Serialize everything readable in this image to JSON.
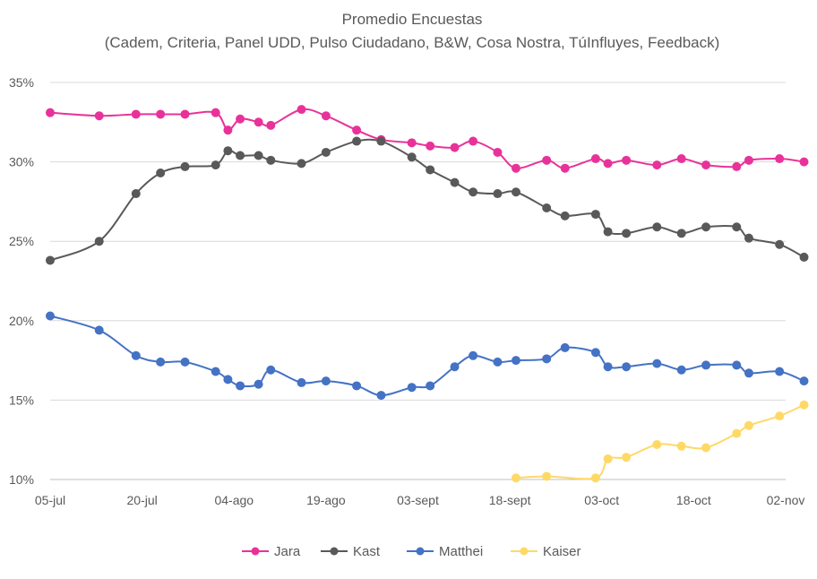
{
  "chart_data": {
    "type": "line",
    "title": "Promedio Encuestas",
    "subtitle": "(Cadem, Criteria, Panel UDD, Pulso Ciudadano, B&W, Cosa Nostra, TúInfluyes, Feedback)",
    "xlabel": "",
    "ylabel": "",
    "x_axis": {
      "type": "date",
      "start": "2025-07-05",
      "end": "2025-11-02",
      "ticks": [
        {
          "date": "2025-07-05",
          "label": "05-jul"
        },
        {
          "date": "2025-07-20",
          "label": "20-jul"
        },
        {
          "date": "2025-08-04",
          "label": "04-ago"
        },
        {
          "date": "2025-08-19",
          "label": "19-ago"
        },
        {
          "date": "2025-09-03",
          "label": "03-sept"
        },
        {
          "date": "2025-09-18",
          "label": "18-sept"
        },
        {
          "date": "2025-10-03",
          "label": "03-oct"
        },
        {
          "date": "2025-10-18",
          "label": "18-oct"
        },
        {
          "date": "2025-11-02",
          "label": "02-nov"
        }
      ]
    },
    "y_axis": {
      "min": 10,
      "max": 35,
      "ticks": [
        {
          "value": 10,
          "label": "10%"
        },
        {
          "value": 15,
          "label": "15%"
        },
        {
          "value": 20,
          "label": "20%"
        },
        {
          "value": 25,
          "label": "25%"
        },
        {
          "value": 30,
          "label": "30%"
        },
        {
          "value": 35,
          "label": "35%"
        }
      ]
    },
    "grid": "horizontal",
    "legend_position": "bottom",
    "series": [
      {
        "name": "Jara",
        "color": "#E8329A",
        "points": [
          [
            "2025-07-05",
            33.1
          ],
          [
            "2025-07-13",
            32.9
          ],
          [
            "2025-07-19",
            33.0
          ],
          [
            "2025-07-23",
            33.0
          ],
          [
            "2025-07-27",
            33.0
          ],
          [
            "2025-08-01",
            33.1
          ],
          [
            "2025-08-03",
            32.0
          ],
          [
            "2025-08-05",
            32.7
          ],
          [
            "2025-08-08",
            32.5
          ],
          [
            "2025-08-10",
            32.3
          ],
          [
            "2025-08-15",
            33.3
          ],
          [
            "2025-08-19",
            32.9
          ],
          [
            "2025-08-24",
            32.0
          ],
          [
            "2025-08-28",
            31.4
          ],
          [
            "2025-09-02",
            31.2
          ],
          [
            "2025-09-05",
            31.0
          ],
          [
            "2025-09-09",
            30.9
          ],
          [
            "2025-09-12",
            31.3
          ],
          [
            "2025-09-16",
            30.6
          ],
          [
            "2025-09-19",
            29.6
          ],
          [
            "2025-09-24",
            30.1
          ],
          [
            "2025-09-27",
            29.6
          ],
          [
            "2025-10-02",
            30.2
          ],
          [
            "2025-10-04",
            29.9
          ],
          [
            "2025-10-07",
            30.1
          ],
          [
            "2025-10-12",
            29.8
          ],
          [
            "2025-10-16",
            30.2
          ],
          [
            "2025-10-20",
            29.8
          ],
          [
            "2025-10-25",
            29.7
          ],
          [
            "2025-10-27",
            30.1
          ],
          [
            "2025-11-01",
            30.2
          ],
          [
            "2025-11-05",
            30.0
          ]
        ]
      },
      {
        "name": "Kast",
        "color": "#595959",
        "points": [
          [
            "2025-07-05",
            23.8
          ],
          [
            "2025-07-13",
            25.0
          ],
          [
            "2025-07-19",
            28.0
          ],
          [
            "2025-07-23",
            29.3
          ],
          [
            "2025-07-27",
            29.7
          ],
          [
            "2025-08-01",
            29.8
          ],
          [
            "2025-08-03",
            30.7
          ],
          [
            "2025-08-05",
            30.4
          ],
          [
            "2025-08-08",
            30.4
          ],
          [
            "2025-08-10",
            30.1
          ],
          [
            "2025-08-15",
            29.9
          ],
          [
            "2025-08-19",
            30.6
          ],
          [
            "2025-08-24",
            31.3
          ],
          [
            "2025-08-28",
            31.3
          ],
          [
            "2025-09-02",
            30.3
          ],
          [
            "2025-09-05",
            29.5
          ],
          [
            "2025-09-09",
            28.7
          ],
          [
            "2025-09-12",
            28.1
          ],
          [
            "2025-09-16",
            28.0
          ],
          [
            "2025-09-19",
            28.1
          ],
          [
            "2025-09-24",
            27.1
          ],
          [
            "2025-09-27",
            26.6
          ],
          [
            "2025-10-02",
            26.7
          ],
          [
            "2025-10-04",
            25.6
          ],
          [
            "2025-10-07",
            25.5
          ],
          [
            "2025-10-12",
            25.9
          ],
          [
            "2025-10-16",
            25.5
          ],
          [
            "2025-10-20",
            25.9
          ],
          [
            "2025-10-25",
            25.9
          ],
          [
            "2025-10-27",
            25.2
          ],
          [
            "2025-11-01",
            24.8
          ],
          [
            "2025-11-05",
            24.0
          ]
        ]
      },
      {
        "name": "Matthei",
        "color": "#4472C4",
        "points": [
          [
            "2025-07-05",
            20.3
          ],
          [
            "2025-07-13",
            19.4
          ],
          [
            "2025-07-19",
            17.8
          ],
          [
            "2025-07-23",
            17.4
          ],
          [
            "2025-07-27",
            17.4
          ],
          [
            "2025-08-01",
            16.8
          ],
          [
            "2025-08-03",
            16.3
          ],
          [
            "2025-08-05",
            15.9
          ],
          [
            "2025-08-08",
            16.0
          ],
          [
            "2025-08-10",
            16.9
          ],
          [
            "2025-08-15",
            16.1
          ],
          [
            "2025-08-19",
            16.2
          ],
          [
            "2025-08-24",
            15.9
          ],
          [
            "2025-08-28",
            15.3
          ],
          [
            "2025-09-02",
            15.8
          ],
          [
            "2025-09-05",
            15.9
          ],
          [
            "2025-09-09",
            17.1
          ],
          [
            "2025-09-12",
            17.8
          ],
          [
            "2025-09-16",
            17.4
          ],
          [
            "2025-09-19",
            17.5
          ],
          [
            "2025-09-24",
            17.6
          ],
          [
            "2025-09-27",
            18.3
          ],
          [
            "2025-10-02",
            18.0
          ],
          [
            "2025-10-04",
            17.1
          ],
          [
            "2025-10-07",
            17.1
          ],
          [
            "2025-10-12",
            17.3
          ],
          [
            "2025-10-16",
            16.9
          ],
          [
            "2025-10-20",
            17.2
          ],
          [
            "2025-10-25",
            17.2
          ],
          [
            "2025-10-27",
            16.7
          ],
          [
            "2025-11-01",
            16.8
          ],
          [
            "2025-11-05",
            16.2
          ]
        ]
      },
      {
        "name": "Kaiser",
        "color": "#FFD966",
        "points": [
          [
            "2025-09-19",
            10.1
          ],
          [
            "2025-09-24",
            10.2
          ],
          [
            "2025-10-02",
            10.1
          ],
          [
            "2025-10-04",
            11.3
          ],
          [
            "2025-10-07",
            11.4
          ],
          [
            "2025-10-12",
            12.2
          ],
          [
            "2025-10-16",
            12.1
          ],
          [
            "2025-10-20",
            12.0
          ],
          [
            "2025-10-25",
            12.9
          ],
          [
            "2025-10-27",
            13.4
          ],
          [
            "2025-11-01",
            14.0
          ],
          [
            "2025-11-05",
            14.7
          ]
        ]
      }
    ]
  }
}
